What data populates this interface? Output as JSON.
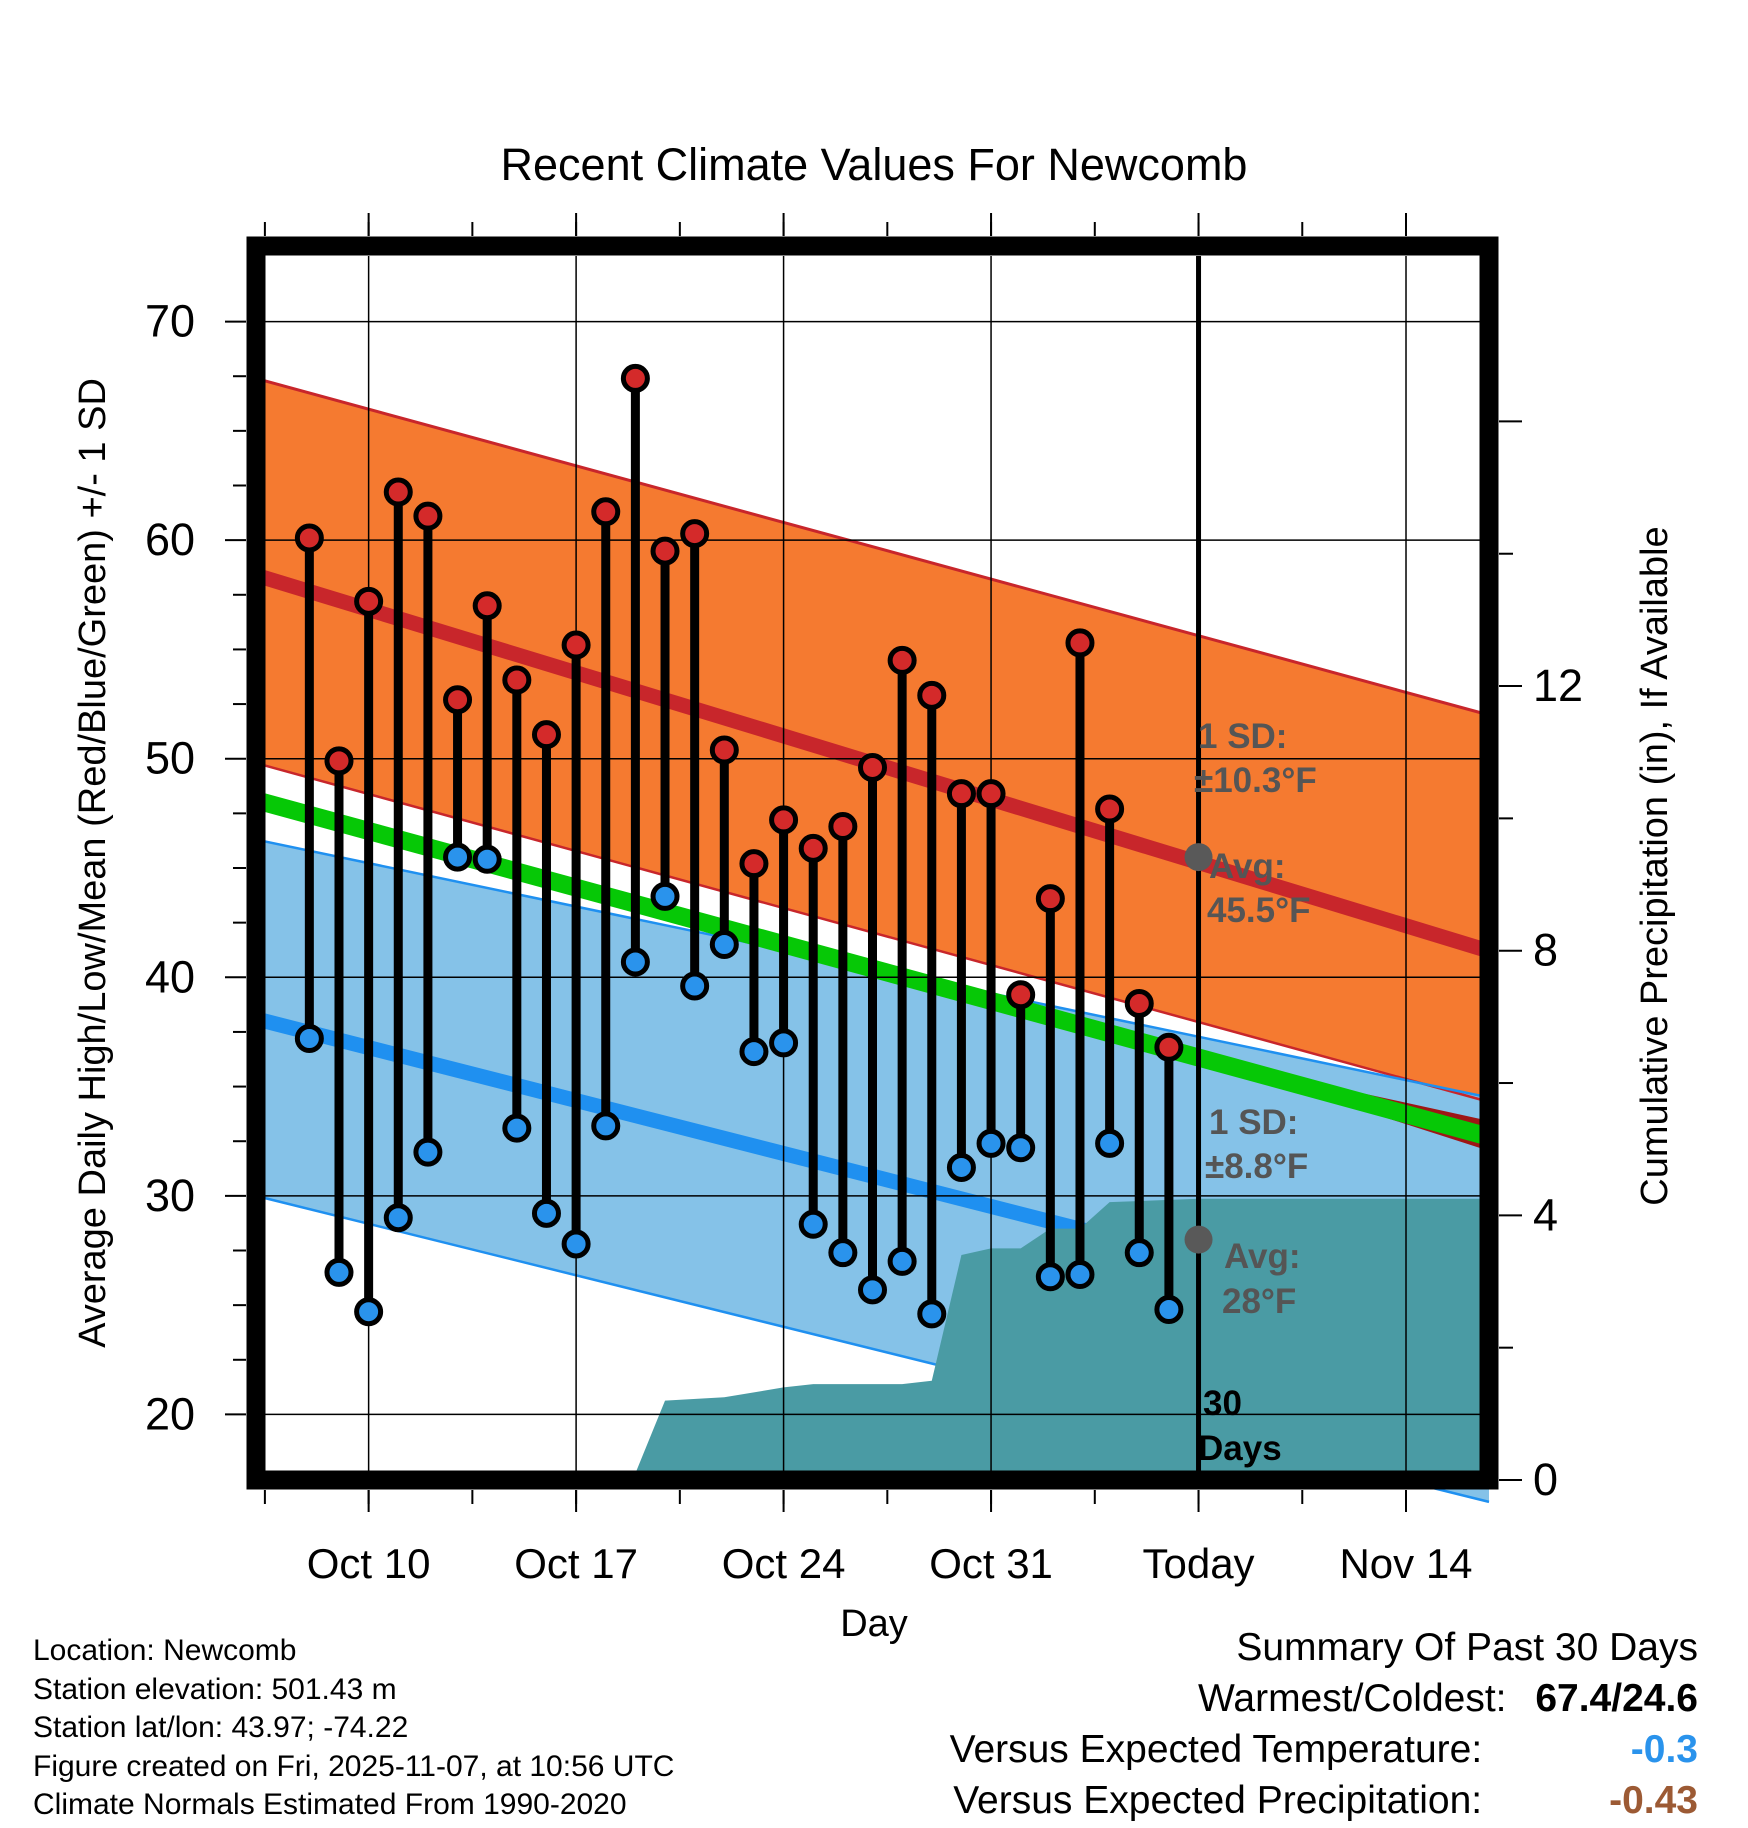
{
  "chart_data": {
    "type": "line",
    "title": "Recent Climate Values For Newcomb",
    "xlabel": "Day",
    "ylabel": "Average Daily High/Low/Mean (Red/Blue/Green) +/- 1 SD",
    "y2label": "Cumulative Precipitation (in), If Available",
    "ylim": [
      17,
      73
    ],
    "y2lim": [
      0,
      18.5
    ],
    "xlim": [
      -1.8,
      39.8
    ],
    "x_ticks": [
      {
        "day": 2,
        "label": "Oct 10"
      },
      {
        "day": 9,
        "label": "Oct 17"
      },
      {
        "day": 16,
        "label": "Oct 24"
      },
      {
        "day": 23,
        "label": "Oct 31"
      },
      {
        "day": 30,
        "label": "Today"
      },
      {
        "day": 37,
        "label": "Nov 14"
      }
    ],
    "y_ticks": [
      20,
      30,
      40,
      50,
      60,
      70
    ],
    "y2_ticks": [
      0,
      4,
      8,
      12
    ],
    "today_day": 30,
    "today_label": "30 Days",
    "grid": true,
    "normals": {
      "high_avg": [
        58.4,
        41.2
      ],
      "high_upper": [
        67.4,
        52.0
      ],
      "high_lower": [
        49.8,
        34.3
      ],
      "low_avg": [
        38.1,
        23.7
      ],
      "low_upper": [
        46.3,
        34.5
      ],
      "low_lower": [
        30.0,
        16.0
      ],
      "mean_avg": [
        48.1,
        32.7
      ]
    },
    "annotations": {
      "high_sd": "1 SD:",
      "high_sd_value": "±10.3°F",
      "high_avg_label": "Avg:",
      "high_avg_value": "45.5°F",
      "low_sd": "1 SD:",
      "low_sd_value": "±8.8°F",
      "low_avg_label": "Avg:",
      "low_avg_value": "28°F",
      "today_high_avg": 45.5,
      "today_low_avg": 28.0
    },
    "series": [
      {
        "name": "Daily High",
        "color": "#d42a2a",
        "values": [
          60.1,
          49.9,
          57.2,
          62.2,
          61.1,
          52.7,
          57.0,
          53.6,
          51.1,
          55.2,
          61.3,
          67.4,
          59.5,
          60.3,
          50.4,
          45.2,
          47.2,
          45.9,
          46.9,
          49.6,
          54.5,
          52.9,
          48.4,
          48.4,
          39.2,
          43.6,
          55.3,
          47.7,
          38.8,
          36.8
        ]
      },
      {
        "name": "Daily Low",
        "color": "#2a93ec",
        "values": [
          37.2,
          26.5,
          24.7,
          29.0,
          32.0,
          45.5,
          45.4,
          33.1,
          29.2,
          27.8,
          33.2,
          40.7,
          43.7,
          39.6,
          41.5,
          36.6,
          37.0,
          28.7,
          27.4,
          25.7,
          27.0,
          24.6,
          31.3,
          32.4,
          32.2,
          26.3,
          26.4,
          32.4,
          27.4,
          24.8
        ]
      },
      {
        "name": "Cumulative Precipitation",
        "values": [
          [
            -1.8,
            0
          ],
          [
            5.0,
            0
          ],
          [
            6.0,
            0.1
          ],
          [
            11.0,
            0.1
          ],
          [
            12.0,
            1.2
          ],
          [
            14.0,
            1.25
          ],
          [
            16.0,
            1.4
          ],
          [
            17.0,
            1.45
          ],
          [
            20.0,
            1.45
          ],
          [
            21.0,
            1.5
          ],
          [
            22.0,
            3.4
          ],
          [
            23.0,
            3.5
          ],
          [
            24.0,
            3.5
          ],
          [
            25.0,
            3.8
          ],
          [
            26.0,
            3.8
          ],
          [
            27.0,
            4.2
          ],
          [
            30.0,
            4.25
          ],
          [
            39.8,
            4.25
          ]
        ]
      }
    ]
  },
  "footer": {
    "location": "Location: Newcomb",
    "elevation": "Station elevation: 501.43 m",
    "latlon": "Station lat/lon: 43.97; -74.22",
    "created": "Figure created on Fri, 2025-11-07, at 10:56 UTC",
    "normals": "Climate Normals Estimated From 1990-2020"
  },
  "summary": {
    "title": "Summary Of Past 30 Days",
    "warm_cold_label": "Warmest/Coldest:",
    "warm_cold_value": "67.4/24.6",
    "temp_label": "Versus Expected Temperature:",
    "temp_value": "-0.3",
    "temp_color": "#2a93ec",
    "precip_label": "Versus Expected Precipitation:",
    "precip_value": "-0.43",
    "precip_color": "#9c5a34"
  },
  "colors": {
    "high_band": "#f57a30",
    "high_line": "#c8262b",
    "low_band": "#85c2e8",
    "low_line": "#1f90f0",
    "mean_line": "#06c806",
    "precip": "#4a9ba4",
    "dark_red": "#9e1616"
  }
}
